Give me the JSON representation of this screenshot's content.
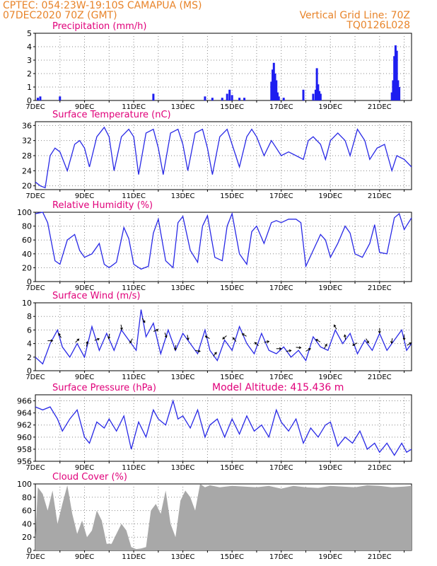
{
  "header": {
    "line1": "CPTEC:   054:23W-19:10S   CAMAPUA (MS)",
    "line2": "07DEC2020 70Z (GMT)",
    "grid_note": "Vertical Grid Line: 70Z",
    "code": "TQ0126L028",
    "altitude": "Model Altitude: 415.436 m"
  },
  "colors": {
    "header": "#e8842a",
    "panel_title": "#e0007a",
    "line": "#2828e6",
    "bar": "#1e1ef0",
    "cloud": "#a8a8a8",
    "arrow": "#000000"
  },
  "chart_data": [
    {
      "type": "bar",
      "title": "Precipitation (mm/h)",
      "x_range_days": [
        7,
        22.3
      ],
      "ylim": [
        0,
        5
      ],
      "yticks": [
        "0",
        "1",
        "2",
        "3",
        "4",
        "5"
      ],
      "xticks": [
        "7DEC",
        "9DEC",
        "11DEC",
        "13DEC",
        "15DEC",
        "17DEC",
        "19DEC",
        "21DEC"
      ],
      "x": [
        7.1,
        7.2,
        8.0,
        11.8,
        13.9,
        14.2,
        14.6,
        14.8,
        14.9,
        15.0,
        15.3,
        15.5,
        16.6,
        16.65,
        16.7,
        16.75,
        16.8,
        16.85,
        16.9,
        17.1,
        17.9,
        18.3,
        18.4,
        18.45,
        18.5,
        18.55,
        18.6,
        21.5,
        21.55,
        21.6,
        21.65,
        21.7,
        21.75,
        21.8
      ],
      "values": [
        0.2,
        0.3,
        0.3,
        0.5,
        0.3,
        0.2,
        0.2,
        0.5,
        0.8,
        0.4,
        0.2,
        0.2,
        1.4,
        2.3,
        2.8,
        2.0,
        1.5,
        0.6,
        0.3,
        0.2,
        0.8,
        0.5,
        0.8,
        2.4,
        1.2,
        0.7,
        0.5,
        0.6,
        1.5,
        3.3,
        4.1,
        3.7,
        1.5,
        1.0
      ]
    },
    {
      "type": "line",
      "title": "Surface Temperature (nC)",
      "ylim": [
        19,
        37
      ],
      "yticks": [
        "20",
        "24",
        "28",
        "32",
        "36"
      ],
      "xticks": [
        "7DEC",
        "9DEC",
        "11DEC",
        "13DEC",
        "15DEC",
        "17DEC",
        "19DEC",
        "21DEC"
      ],
      "x": [
        7,
        7.2,
        7.4,
        7.6,
        7.8,
        8.0,
        8.3,
        8.6,
        8.8,
        9.0,
        9.2,
        9.5,
        9.8,
        10.0,
        10.2,
        10.5,
        10.8,
        11.0,
        11.2,
        11.5,
        11.8,
        12.0,
        12.2,
        12.5,
        12.8,
        13.0,
        13.2,
        13.5,
        13.8,
        14.0,
        14.2,
        14.5,
        14.8,
        15.0,
        15.3,
        15.6,
        15.8,
        16.0,
        16.3,
        16.6,
        16.8,
        17.0,
        17.3,
        17.6,
        17.9,
        18.1,
        18.3,
        18.6,
        18.8,
        19.0,
        19.3,
        19.6,
        19.8,
        20.1,
        20.4,
        20.6,
        20.9,
        21.2,
        21.5,
        21.7,
        22.0,
        22.3
      ],
      "values": [
        21,
        20,
        19.5,
        28,
        30,
        29,
        24,
        31,
        32,
        30,
        25,
        33,
        35.5,
        33,
        24,
        33,
        35,
        33,
        23,
        34,
        35,
        30,
        23,
        34,
        35,
        31,
        24,
        34,
        35,
        30,
        23,
        33,
        35,
        31,
        25,
        33,
        35,
        33,
        28,
        32,
        30,
        28,
        29,
        28,
        27,
        32,
        33,
        31,
        27,
        32,
        34,
        32,
        28,
        35,
        32,
        27,
        30,
        31,
        24,
        28,
        27,
        25
      ],
      "color": "#2828e6"
    },
    {
      "type": "line",
      "title": "Relative Humidity (%)",
      "ylim": [
        0,
        100
      ],
      "yticks": [
        "0",
        "20",
        "40",
        "60",
        "80",
        "100"
      ],
      "xticks": [
        "7DEC",
        "9DEC",
        "11DEC",
        "13DEC",
        "15DEC",
        "17DEC",
        "19DEC",
        "21DEC"
      ],
      "x": [
        7,
        7.3,
        7.5,
        7.8,
        8.0,
        8.3,
        8.6,
        8.8,
        9.0,
        9.3,
        9.6,
        9.8,
        10.0,
        10.3,
        10.6,
        10.8,
        11.0,
        11.3,
        11.6,
        11.8,
        12.0,
        12.3,
        12.6,
        12.8,
        13.0,
        13.3,
        13.6,
        13.8,
        14.0,
        14.3,
        14.6,
        14.8,
        15.0,
        15.3,
        15.6,
        15.8,
        16.0,
        16.3,
        16.6,
        16.8,
        17.0,
        17.3,
        17.6,
        17.8,
        18.0,
        18.3,
        18.6,
        18.8,
        19.0,
        19.3,
        19.6,
        19.8,
        20.0,
        20.3,
        20.6,
        20.8,
        21.0,
        21.3,
        21.6,
        21.8,
        22.0,
        22.3
      ],
      "values": [
        98,
        100,
        85,
        30,
        25,
        60,
        68,
        45,
        35,
        40,
        55,
        25,
        20,
        28,
        78,
        62,
        25,
        18,
        22,
        70,
        90,
        30,
        20,
        85,
        94,
        45,
        28,
        80,
        95,
        35,
        30,
        80,
        98,
        40,
        25,
        72,
        80,
        55,
        85,
        88,
        85,
        90,
        90,
        85,
        22,
        45,
        68,
        60,
        35,
        55,
        80,
        70,
        40,
        35,
        55,
        82,
        42,
        40,
        92,
        98,
        75,
        92
      ],
      "color": "#2828e6"
    },
    {
      "type": "line",
      "title": "Surface Wind (m/s)",
      "ylim": [
        0,
        10
      ],
      "yticks": [
        "0",
        "2",
        "4",
        "6",
        "8",
        "10"
      ],
      "xticks": [
        "7DEC",
        "9DEC",
        "11DEC",
        "13DEC",
        "15DEC",
        "17DEC",
        "19DEC",
        "21DEC"
      ],
      "x": [
        7,
        7.3,
        7.6,
        7.9,
        8.1,
        8.4,
        8.7,
        9.0,
        9.3,
        9.6,
        9.9,
        10.2,
        10.5,
        10.8,
        11.1,
        11.3,
        11.5,
        11.8,
        12.1,
        12.4,
        12.7,
        13.0,
        13.3,
        13.6,
        13.9,
        14.1,
        14.4,
        14.7,
        15.0,
        15.3,
        15.6,
        15.9,
        16.2,
        16.5,
        16.8,
        17.1,
        17.4,
        17.7,
        18.0,
        18.3,
        18.6,
        18.9,
        19.2,
        19.5,
        19.8,
        20.1,
        20.4,
        20.7,
        21.0,
        21.3,
        21.6,
        21.9,
        22.1,
        22.3
      ],
      "values": [
        2.0,
        1.0,
        4.0,
        6.0,
        3.5,
        2.0,
        4.0,
        2.0,
        6.5,
        3.0,
        5.5,
        3.0,
        6.0,
        4.5,
        3.0,
        9.0,
        5.0,
        7.0,
        2.5,
        6.0,
        3.0,
        5.5,
        4.0,
        2.5,
        6.0,
        3.0,
        1.5,
        4.5,
        3.0,
        6.5,
        4.0,
        2.5,
        5.5,
        3.0,
        2.5,
        3.5,
        2.0,
        3.0,
        1.5,
        5.0,
        3.5,
        3.0,
        6.0,
        4.0,
        5.5,
        2.5,
        4.5,
        3.0,
        5.5,
        3.0,
        4.5,
        6.0,
        3.0,
        4.0
      ],
      "color": "#2828e6",
      "arrows": [
        {
          "x": 7.6,
          "angle": 0
        },
        {
          "x": 8.0,
          "angle": -120
        },
        {
          "x": 8.7,
          "angle": -45
        },
        {
          "x": 9.1,
          "angle": -80
        },
        {
          "x": 9.5,
          "angle": -20
        },
        {
          "x": 10.0,
          "angle": 100
        },
        {
          "x": 10.5,
          "angle": 80
        },
        {
          "x": 10.9,
          "angle": 120
        },
        {
          "x": 11.4,
          "angle": 60
        },
        {
          "x": 11.9,
          "angle": -20
        },
        {
          "x": 12.3,
          "angle": 70
        },
        {
          "x": 12.7,
          "angle": 100
        },
        {
          "x": 13.2,
          "angle": 80
        },
        {
          "x": 13.6,
          "angle": 10
        },
        {
          "x": 14.0,
          "angle": -150
        },
        {
          "x": 14.3,
          "angle": -50
        },
        {
          "x": 14.7,
          "angle": 140
        },
        {
          "x": 15.1,
          "angle": -130
        },
        {
          "x": 15.5,
          "angle": -150
        },
        {
          "x": 16.0,
          "angle": -140
        },
        {
          "x": 16.4,
          "angle": -10
        },
        {
          "x": 16.9,
          "angle": 0
        },
        {
          "x": 17.3,
          "angle": -10
        },
        {
          "x": 17.7,
          "angle": 5
        },
        {
          "x": 18.1,
          "angle": -30
        },
        {
          "x": 18.5,
          "angle": -150
        },
        {
          "x": 18.8,
          "angle": -60
        },
        {
          "x": 19.2,
          "angle": -120
        },
        {
          "x": 19.6,
          "angle": -100
        },
        {
          "x": 20.0,
          "angle": 150
        },
        {
          "x": 20.5,
          "angle": 60
        },
        {
          "x": 21.0,
          "angle": 90
        },
        {
          "x": 21.5,
          "angle": 100
        },
        {
          "x": 22.0,
          "angle": 90
        },
        {
          "x": 22.2,
          "angle": -30
        }
      ]
    },
    {
      "type": "line",
      "title": "Surface Pressure (hPa)",
      "ylim": [
        956,
        967
      ],
      "yticks": [
        "956",
        "958",
        "960",
        "962",
        "964",
        "966"
      ],
      "xticks": [
        "7DEC",
        "9DEC",
        "11DEC",
        "13DEC",
        "15DEC",
        "17DEC",
        "19DEC",
        "21DEC"
      ],
      "x": [
        7,
        7.3,
        7.6,
        7.9,
        8.1,
        8.4,
        8.7,
        9.0,
        9.2,
        9.5,
        9.8,
        10.0,
        10.3,
        10.6,
        10.9,
        11.2,
        11.5,
        11.8,
        12.0,
        12.3,
        12.6,
        12.8,
        13.0,
        13.3,
        13.6,
        13.9,
        14.1,
        14.4,
        14.7,
        15.0,
        15.3,
        15.6,
        15.9,
        16.2,
        16.5,
        16.8,
        17.0,
        17.3,
        17.6,
        17.9,
        18.2,
        18.5,
        18.8,
        19.0,
        19.3,
        19.6,
        19.9,
        20.2,
        20.5,
        20.8,
        21.0,
        21.3,
        21.6,
        21.9,
        22.1,
        22.3
      ],
      "values": [
        965,
        964.5,
        965,
        963,
        961,
        963,
        964.5,
        960,
        959,
        962.5,
        961.5,
        963,
        961,
        963.5,
        958,
        962.5,
        960,
        964.5,
        963,
        962,
        966,
        963,
        963.5,
        961.5,
        964.5,
        960,
        962,
        963,
        960,
        963,
        960.5,
        963.5,
        961,
        962,
        960,
        964.5,
        962.5,
        961,
        963,
        959,
        961.5,
        960,
        962,
        962.5,
        958.5,
        960,
        959,
        961,
        958,
        959,
        957.5,
        959,
        957,
        959,
        957.5,
        958
      ],
      "color": "#2828e6"
    },
    {
      "type": "area",
      "title": "Cloud Cover (%)",
      "ylim": [
        0,
        100
      ],
      "yticks": [
        "0",
        "20",
        "40",
        "60",
        "80",
        "100"
      ],
      "xticks": [
        "7DEC",
        "9DEC",
        "11DEC",
        "13DEC",
        "15DEC",
        "17DEC",
        "19DEC",
        "21DEC"
      ],
      "x": [
        7.0,
        7.1,
        7.3,
        7.5,
        7.7,
        7.9,
        8.1,
        8.3,
        8.5,
        8.7,
        8.9,
        9.1,
        9.3,
        9.5,
        9.7,
        9.9,
        10.1,
        10.3,
        10.5,
        10.7,
        10.9,
        11.1,
        11.3,
        11.5,
        11.7,
        11.9,
        12.1,
        12.3,
        12.5,
        12.7,
        12.9,
        13.1,
        13.3,
        13.5,
        13.7,
        13.9,
        14.1,
        14.5,
        15.0,
        15.5,
        16.0,
        16.5,
        17.0,
        17.5,
        18.0,
        18.5,
        19.0,
        19.5,
        20.0,
        20.5,
        21.0,
        21.5,
        22.0,
        22.3
      ],
      "values": [
        20,
        95,
        85,
        60,
        90,
        40,
        70,
        98,
        55,
        25,
        45,
        20,
        30,
        60,
        45,
        10,
        10,
        25,
        40,
        30,
        5,
        2,
        3,
        5,
        60,
        70,
        55,
        90,
        40,
        20,
        75,
        90,
        80,
        60,
        100,
        95,
        98,
        95,
        97,
        96,
        95,
        97,
        93,
        97,
        95,
        94,
        97,
        96,
        95,
        98,
        97,
        95,
        96,
        97
      ],
      "color": "#a8a8a8"
    }
  ]
}
